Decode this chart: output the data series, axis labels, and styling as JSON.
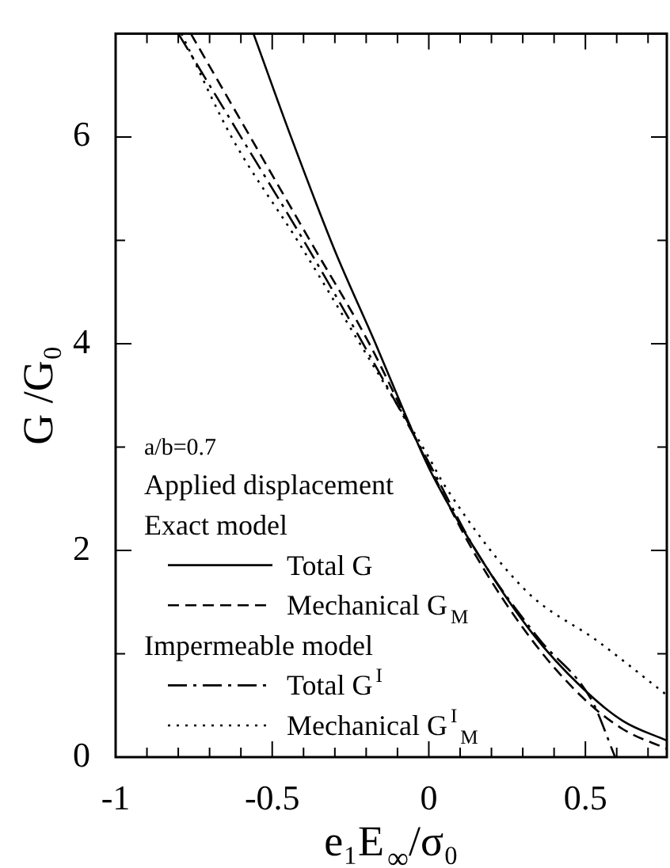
{
  "chart_data": {
    "type": "line",
    "xlabel": "e₁E$_{∞}$/σ₀",
    "ylabel": "G /G₀",
    "annotations": [
      "a/b=0.7",
      "Applied displacement",
      "Exact model",
      "Impermeable model"
    ],
    "xlim": [
      -1,
      0.76
    ],
    "ylim": [
      0,
      7
    ],
    "xticks": [
      -1,
      {
        "value": -0.9,
        "label": null
      },
      {
        "value": -0.8,
        "label": null
      },
      {
        "value": -0.7,
        "label": null
      },
      {
        "value": -0.6,
        "label": null
      },
      -0.5,
      {
        "value": -0.4,
        "label": null
      },
      {
        "value": -0.3,
        "label": null
      },
      {
        "value": -0.2,
        "label": null
      },
      {
        "value": -0.1,
        "label": null
      },
      0,
      {
        "value": 0.1,
        "label": null
      },
      {
        "value": 0.2,
        "label": null
      },
      {
        "value": 0.3,
        "label": null
      },
      {
        "value": 0.4,
        "label": null
      },
      0.5,
      {
        "value": 0.6,
        "label": null
      },
      {
        "value": 0.7,
        "label": null
      }
    ],
    "yticks": [
      0,
      {
        "value": 1,
        "label": null
      },
      2,
      {
        "value": 3,
        "label": null
      },
      4,
      {
        "value": 5,
        "label": null
      },
      6
    ],
    "grid": false,
    "legend": "bottom left",
    "marker": "none",
    "series": [
      {
        "name": "Total G",
        "color": "#000000",
        "line_style": "solid",
        "x": [
          -0.56,
          -0.44,
          -0.3,
          -0.17,
          -0.08,
          0,
          0.15,
          0.33,
          0.49,
          0.62,
          0.76
        ],
        "values": [
          7,
          6,
          4.9,
          4,
          3.35,
          2.8,
          2.0,
          1.2,
          0.67,
          0.35,
          0.16
        ]
      },
      {
        "name": "Mechanical G$_{M}$",
        "color": "#000000",
        "line_style": "dashed",
        "x": [
          -0.76,
          -0.57,
          -0.38,
          -0.19,
          0,
          0.15,
          0.33,
          0.49,
          0.62,
          0.76
        ],
        "values": [
          7,
          6,
          5,
          4,
          2.82,
          1.95,
          1.13,
          0.58,
          0.27,
          0.08
        ]
      },
      {
        "name": "Total G$^{I}$",
        "color": "#000000",
        "line_style": "dashdot",
        "x": [
          -0.8,
          -0.6,
          -0.4,
          -0.21,
          0,
          0.15,
          0.35,
          0.52,
          0.595
        ],
        "values": [
          7,
          6,
          5,
          4,
          2.85,
          2.0,
          1.15,
          0.55,
          0
        ]
      },
      {
        "name": "Mechanical G$^{I}$$_{M}$",
        "color": "#000000",
        "line_style": "dotted",
        "x": [
          -0.79,
          -0.63,
          -0.42,
          -0.22,
          0,
          0.05,
          0.31,
          0.54,
          0.76
        ],
        "values": [
          7,
          6,
          5,
          4,
          2.9,
          2.63,
          1.61,
          1.12,
          0.6
        ]
      }
    ]
  }
}
